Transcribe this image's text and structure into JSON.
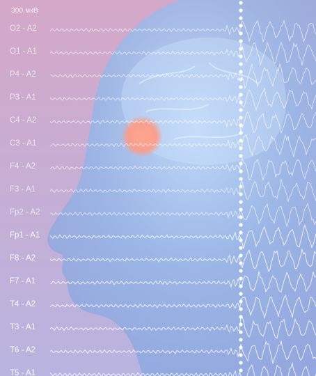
{
  "scale_label": "300 мкВ",
  "leads": [
    "O2 - A2",
    "O1 - A1",
    "P4 - A2",
    "P3 - A1",
    "C4 - A2",
    "C3 - A1",
    "F4 - A2",
    "F3 - A1",
    "Fp2 - A2",
    "Fp1 - A1",
    "F8 - A2",
    "F7 - A1",
    "T4 - A2",
    "T3 - A1",
    "T6 - A2",
    "T5 - A1"
  ],
  "colors": {
    "background": "#c4a8d4",
    "head": "#9fc3ec",
    "trace": "#ffffff",
    "focus_spot": "#ff9b84",
    "divider": "#ffffff"
  }
}
